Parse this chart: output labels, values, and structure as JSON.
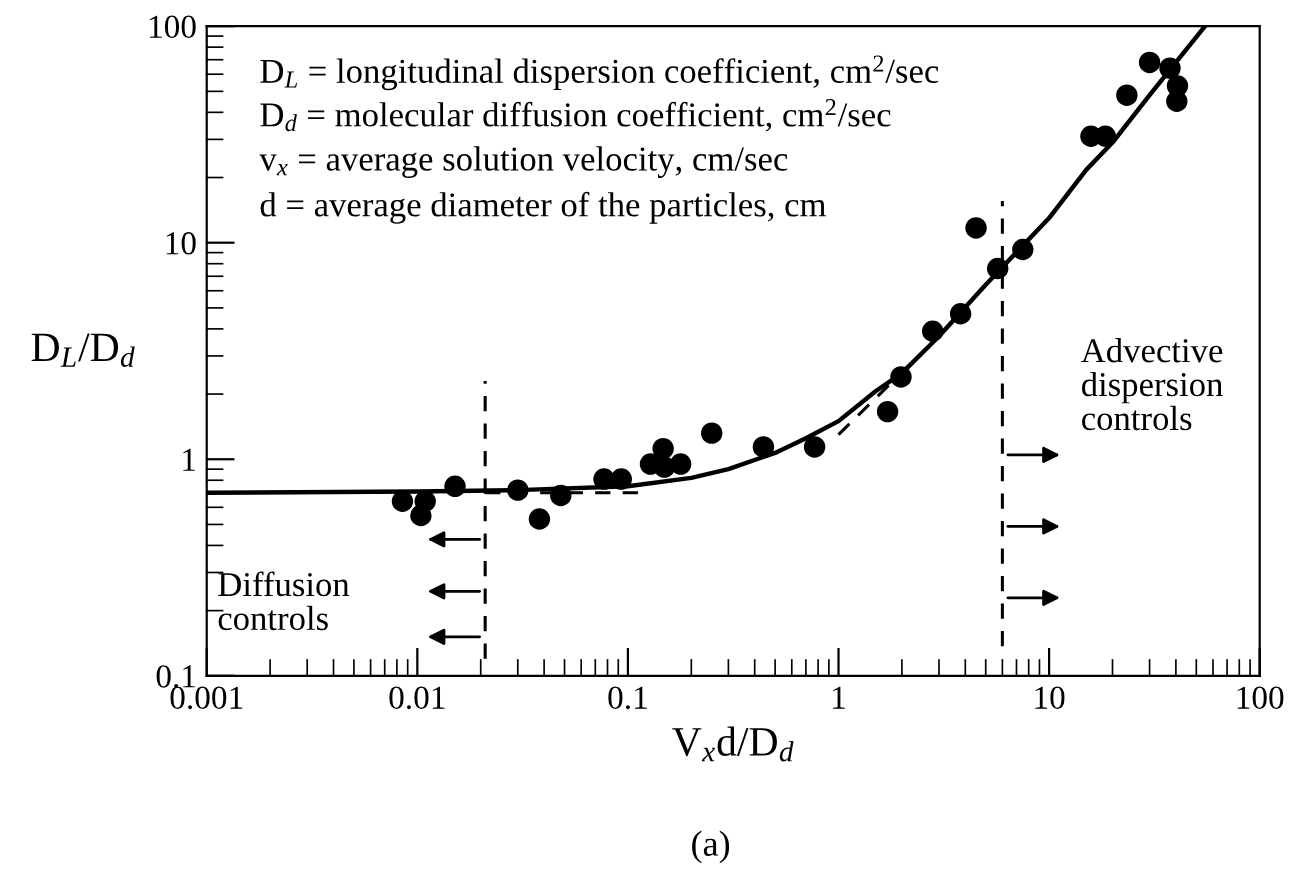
{
  "chart_data": {
    "type": "scatter",
    "log": "xy",
    "xlabel": "V$_{x}$d/D$_{d}$",
    "ylabel": "D$_{L}$/D$_{d}$",
    "xlim": [
      0.001,
      100
    ],
    "ylim": [
      0.1,
      100
    ],
    "xticks": [
      0.001,
      0.01,
      0.1,
      1,
      10,
      100
    ],
    "yticks": [
      0.1,
      1,
      10,
      100
    ],
    "grid": false,
    "marker": "circle",
    "series": [
      {
        "color": "#000000",
        "x": [
          0.0085,
          0.0109,
          0.0104,
          0.0151,
          0.03,
          0.038,
          0.048,
          0.077,
          0.093,
          0.128,
          0.147,
          0.149,
          0.178,
          0.25,
          0.44,
          0.77,
          1.71,
          1.98,
          2.8,
          3.8,
          4.5,
          5.7,
          7.5,
          15.8,
          18.5,
          23.4,
          30,
          37.5,
          40.7,
          40.4
        ],
        "values": [
          0.64,
          0.64,
          0.55,
          0.75,
          0.72,
          0.53,
          0.68,
          0.81,
          0.81,
          0.95,
          1.12,
          0.92,
          0.95,
          1.32,
          1.14,
          1.14,
          1.66,
          2.4,
          3.9,
          4.7,
          11.7,
          7.6,
          9.3,
          31,
          31,
          48,
          68,
          64,
          53,
          45
        ]
      },
      {
        "type": "line",
        "color": "#000000",
        "line_style": "solid",
        "marker": "none",
        "x": [
          0.001,
          0.01,
          0.03,
          0.1,
          0.2,
          0.3,
          0.5,
          0.7,
          1,
          1.5,
          2,
          3,
          5,
          10,
          15,
          20,
          30,
          55
        ],
        "values": [
          0.7,
          0.71,
          0.72,
          0.75,
          0.82,
          0.9,
          1.07,
          1.25,
          1.5,
          2.06,
          2.5,
          3.7,
          6.4,
          13,
          21.7,
          29,
          48,
          100
        ]
      },
      {
        "type": "line",
        "color": "#000000",
        "line_style": "dashed",
        "marker": "none",
        "x": [
          0.021,
          0.12
        ],
        "values": [
          0.7,
          0.7
        ]
      },
      {
        "type": "line",
        "color": "#000000",
        "line_style": "dashed",
        "marker": "none",
        "x": [
          1.0,
          3.5
        ],
        "values": [
          1.3,
          4.3
        ]
      },
      {
        "type": "line",
        "color": "#000000",
        "line_style": "dashed",
        "marker": "none",
        "x": [
          0.021,
          0.021
        ],
        "values": [
          0.12,
          2.3
        ]
      },
      {
        "type": "line",
        "color": "#000000",
        "line_style": "dashed",
        "marker": "none",
        "x": [
          6,
          6
        ],
        "values": [
          0.137,
          15.6
        ]
      }
    ],
    "annotations": [
      "D$_{L}$ = longitudinal dispersion coefficient, cm$^{2}$/sec",
      "D$_{d}$ = molecular diffusion coefficient, cm$^{2}$/sec",
      "v$_{x}$ = average solution velocity, cm/sec",
      "d = average diameter of the particles, cm",
      "Diffusion\ncontrols",
      "Advective\ndispersion\ncontrols",
      "(a)"
    ]
  }
}
